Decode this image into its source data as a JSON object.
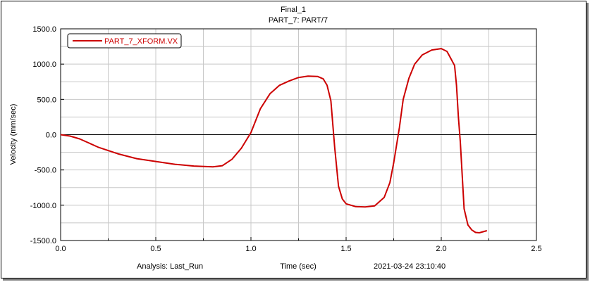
{
  "chart_data": {
    "type": "line",
    "title": "Final_1",
    "subtitle": "PART_7: PART/7",
    "xlabel": "Time (sec)",
    "ylabel": "Velocity (mm/sec)",
    "xlim": [
      0.0,
      2.5
    ],
    "ylim": [
      -1500.0,
      1500.0
    ],
    "xticks": [
      "0.0",
      "0.5",
      "1.0",
      "1.5",
      "2.0",
      "2.5"
    ],
    "yticks": [
      "1500.0",
      "1000.0",
      "500.0",
      "0.0",
      "-500.0",
      "-1000.0",
      "-1500.0"
    ],
    "grid": true,
    "legend_position": "top-left",
    "footer_left": "Analysis:  Last_Run",
    "footer_right": "2021-03-24 23:10:40",
    "series": [
      {
        "name": "PART_7_XFORM.VX",
        "color": "#cc0000",
        "x": [
          0.0,
          0.05,
          0.1,
          0.15,
          0.2,
          0.3,
          0.4,
          0.5,
          0.6,
          0.7,
          0.8,
          0.85,
          0.9,
          0.95,
          1.0,
          1.05,
          1.1,
          1.15,
          1.2,
          1.25,
          1.3,
          1.35,
          1.38,
          1.4,
          1.42,
          1.44,
          1.46,
          1.48,
          1.5,
          1.55,
          1.6,
          1.65,
          1.7,
          1.73,
          1.75,
          1.78,
          1.8,
          1.83,
          1.86,
          1.9,
          1.95,
          2.0,
          2.03,
          2.05,
          2.07,
          2.08,
          2.09,
          2.1,
          2.12,
          2.14,
          2.16,
          2.18,
          2.2,
          2.22,
          2.24
        ],
        "y": [
          0,
          -20,
          -60,
          -120,
          -180,
          -270,
          -340,
          -380,
          -420,
          -445,
          -455,
          -440,
          -350,
          -190,
          30,
          370,
          580,
          700,
          760,
          810,
          830,
          825,
          790,
          700,
          480,
          -180,
          -730,
          -910,
          -980,
          -1020,
          -1025,
          -1010,
          -890,
          -680,
          -400,
          100,
          500,
          800,
          1000,
          1130,
          1200,
          1220,
          1180,
          1080,
          980,
          700,
          250,
          -100,
          -1050,
          -1280,
          -1350,
          -1385,
          -1390,
          -1375,
          -1360
        ]
      }
    ]
  }
}
